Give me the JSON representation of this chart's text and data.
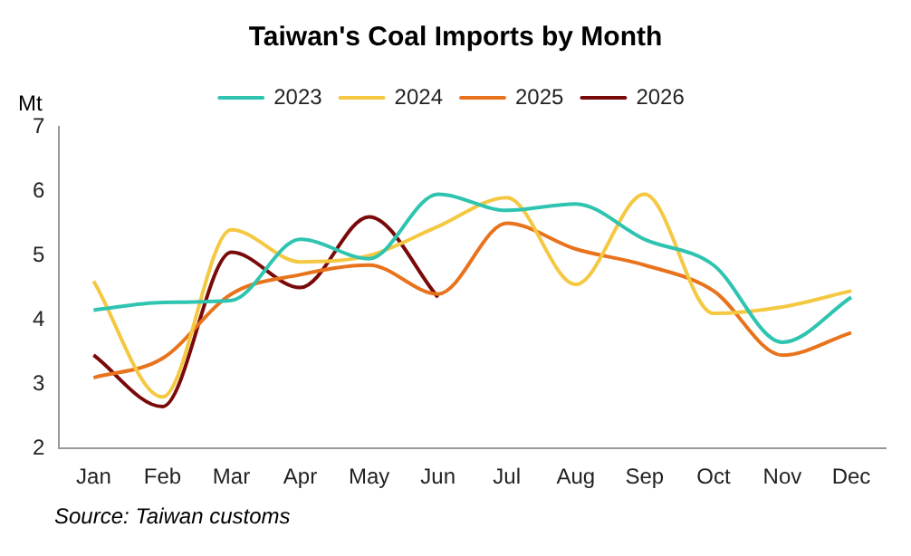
{
  "chart_data": {
    "type": "line",
    "title": "Taiwan's Coal Imports by Month",
    "ylabel": "Mt",
    "categories": [
      "Jan",
      "Feb",
      "Mar",
      "Apr",
      "May",
      "Jun",
      "Jul",
      "Aug",
      "Sep",
      "Oct",
      "Nov",
      "Dec"
    ],
    "series": [
      {
        "name": "2023",
        "color": "#2ec4b0",
        "values": [
          4.15,
          4.27,
          4.3,
          5.25,
          4.95,
          5.95,
          5.7,
          5.8,
          5.25,
          4.85,
          3.65,
          4.35
        ]
      },
      {
        "name": "2024",
        "color": "#f5c842",
        "values": [
          4.6,
          2.8,
          5.4,
          4.9,
          5.0,
          5.45,
          5.9,
          4.55,
          5.95,
          4.1,
          4.2,
          4.45
        ]
      },
      {
        "name": "2025",
        "color": "#e8731c",
        "values": [
          3.1,
          3.4,
          4.4,
          4.7,
          4.85,
          4.4,
          5.5,
          5.1,
          4.85,
          4.45,
          3.45,
          3.8
        ]
      },
      {
        "name": "2026",
        "color": "#7a0a0a",
        "values": [
          3.45,
          2.65,
          5.05,
          4.5,
          5.6,
          4.35,
          null,
          null,
          null,
          null,
          null,
          null
        ]
      }
    ],
    "ylim": [
      2,
      7
    ],
    "yticks": [
      2,
      3,
      4,
      5,
      6,
      7
    ],
    "grid": false,
    "legend": "top",
    "marker": "none",
    "annotations": [
      "Source: Taiwan customs"
    ]
  }
}
